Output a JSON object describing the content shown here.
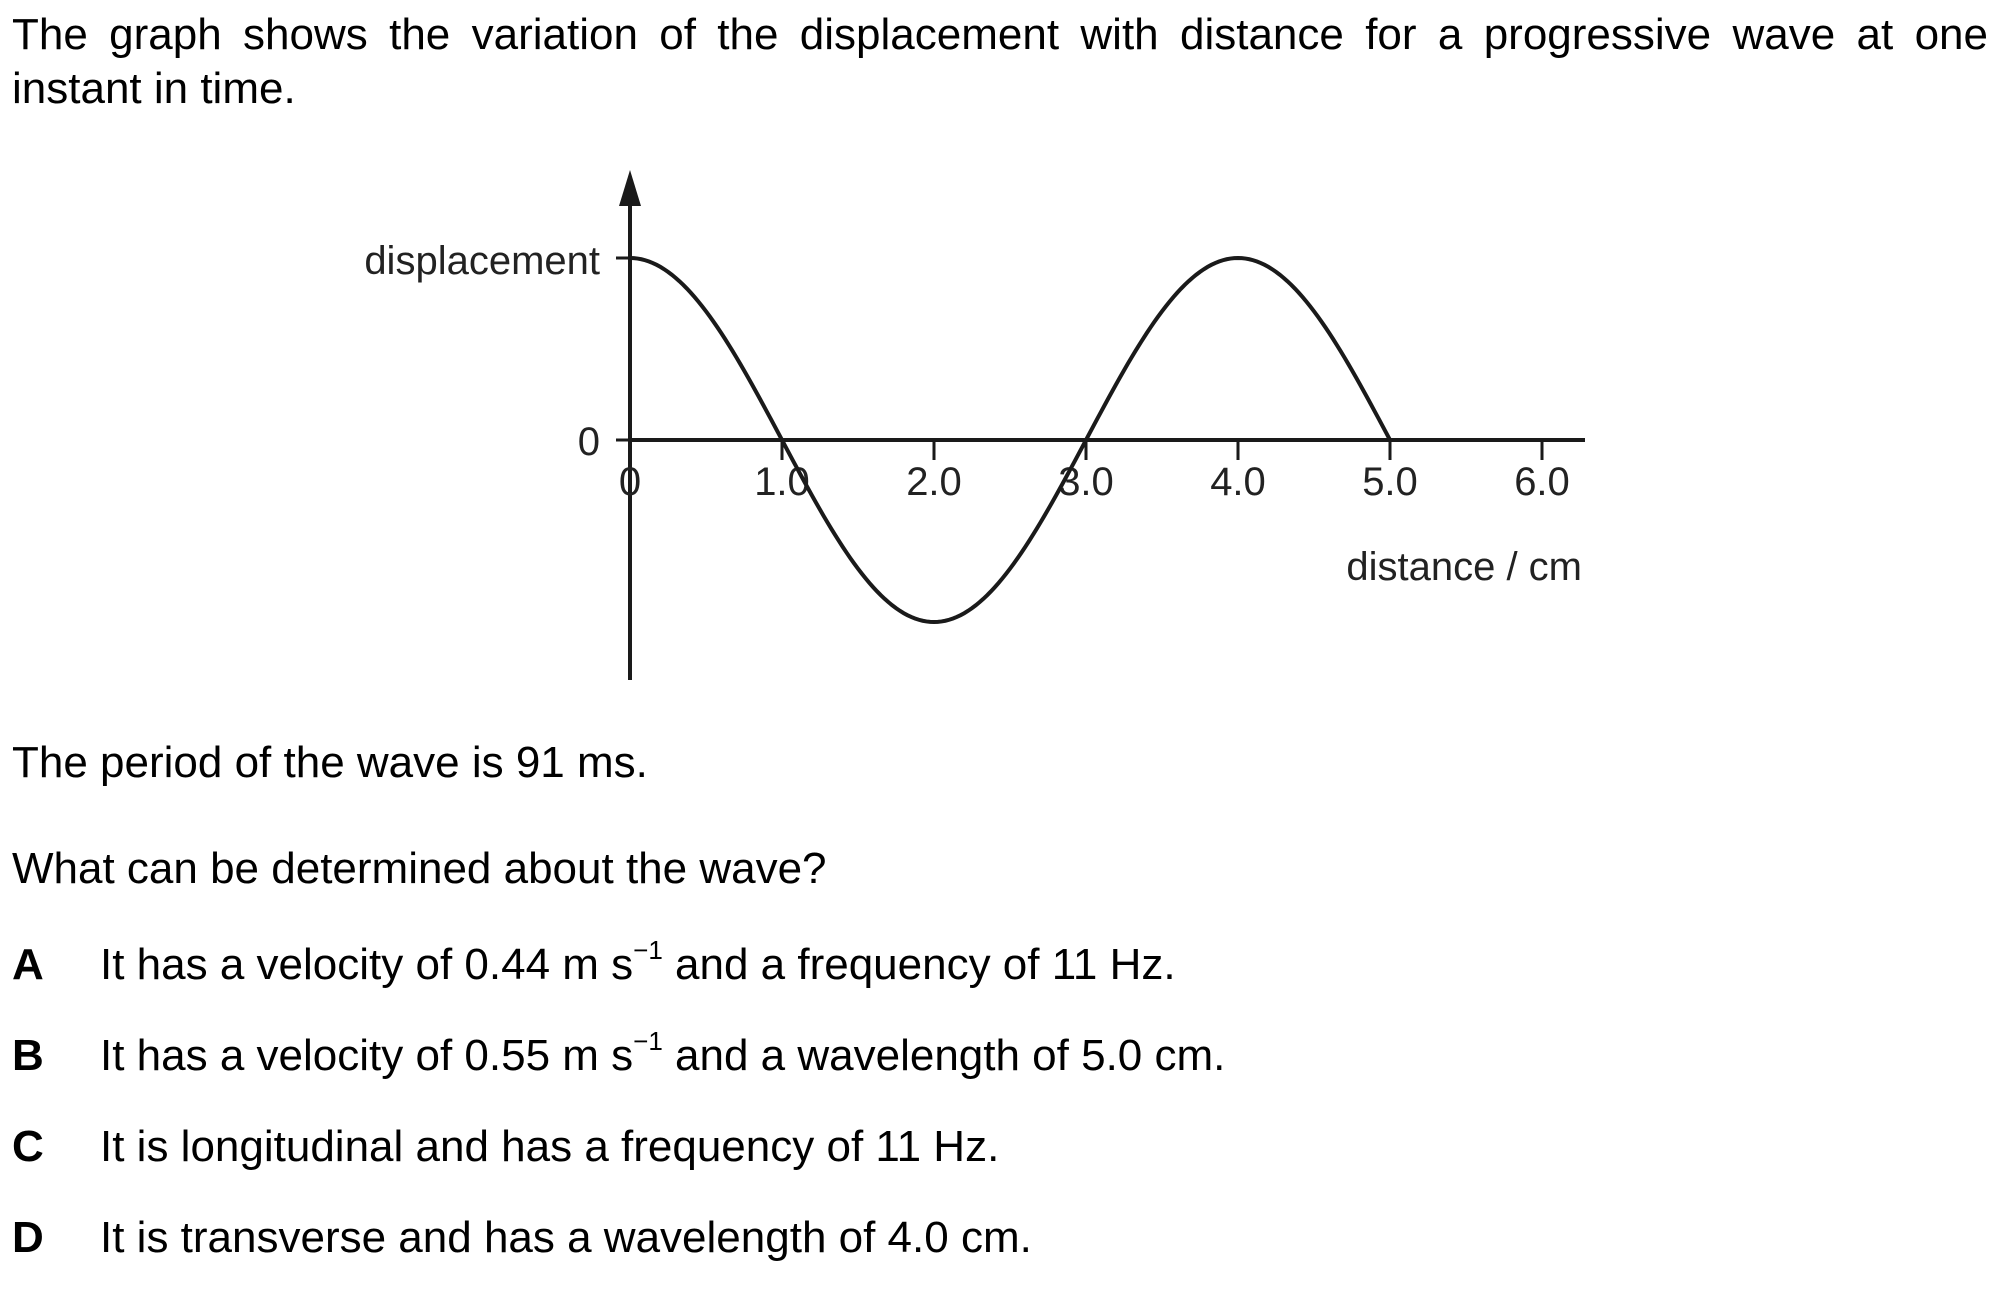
{
  "question": {
    "intro": "The graph shows the variation of the displacement with distance for a progressive wave at one instant in time.",
    "period_text": "The period of the wave is 91 ms.",
    "prompt": "What can be determined about the wave?",
    "options": [
      {
        "letter": "A",
        "before": "It has a velocity of 0.44 m s",
        "sup": "−1",
        "after": " and a frequency of 11 Hz."
      },
      {
        "letter": "B",
        "before": "It has a velocity of 0.55 m s",
        "sup": "−1",
        "after": " and a wavelength of 5.0 cm."
      },
      {
        "letter": "C",
        "before": "It is longitudinal and has a frequency of 11 Hz.",
        "sup": "",
        "after": ""
      },
      {
        "letter": "D",
        "before": "It is transverse and has a wavelength of 4.0 cm.",
        "sup": "",
        "after": ""
      }
    ]
  },
  "chart_data": {
    "type": "line",
    "title": "",
    "xlabel": "distance / cm",
    "ylabel": "displacement",
    "x_ticks": [
      "0",
      "1.0",
      "2.0",
      "3.0",
      "4.0",
      "5.0",
      "6.0"
    ],
    "y_ticks": [
      "0"
    ],
    "xlim": [
      0,
      6.0
    ],
    "ylim": [
      -1,
      1
    ],
    "grid": false,
    "series": [
      {
        "name": "",
        "x": [
          0,
          0.25,
          0.5,
          0.75,
          1.0,
          1.25,
          1.5,
          1.75,
          2.0,
          2.25,
          2.5,
          2.75,
          3.0,
          3.25,
          3.5,
          3.75,
          4.0,
          4.25,
          4.5,
          4.75,
          5.0
        ],
        "y": [
          1.0,
          0.924,
          0.707,
          0.383,
          0.0,
          -0.383,
          -0.707,
          -0.924,
          -1.0,
          -0.924,
          -0.707,
          -0.383,
          0.0,
          0.383,
          0.707,
          0.924,
          1.0,
          0.924,
          0.707,
          0.383,
          0.0
        ]
      }
    ]
  }
}
